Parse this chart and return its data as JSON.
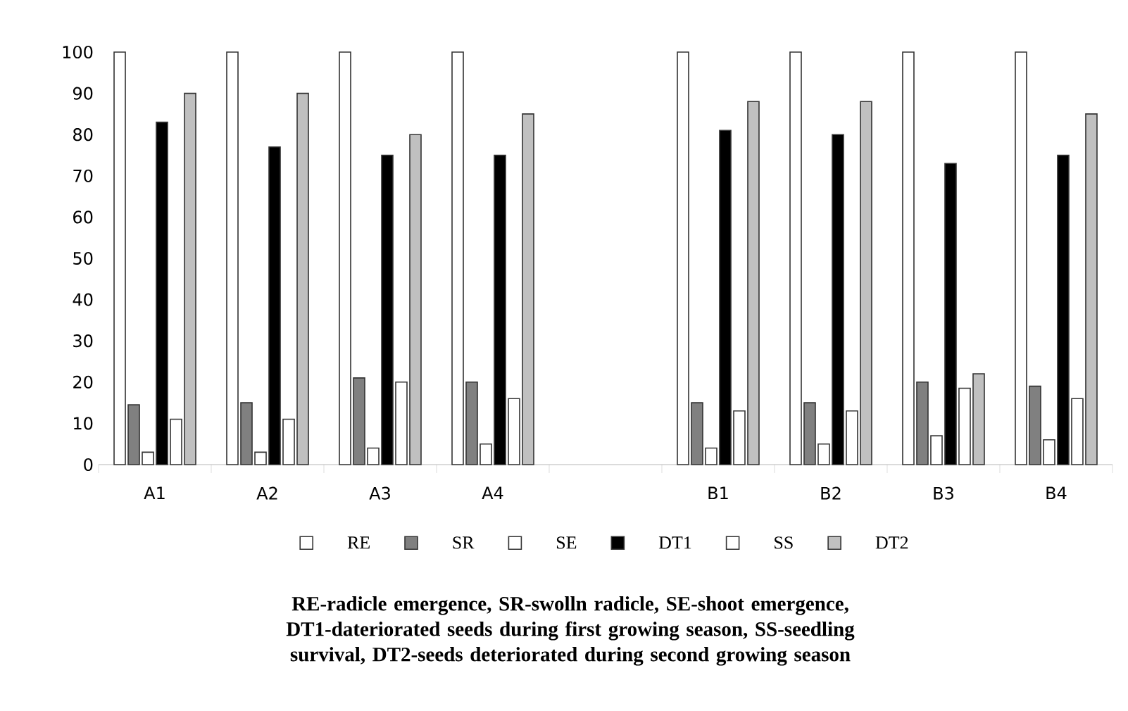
{
  "chart_data": {
    "type": "bar",
    "categories": [
      "A1",
      "A2",
      "A3",
      "A4",
      null,
      "B1",
      "B2",
      "B3",
      "B4"
    ],
    "series": [
      {
        "name": "RE",
        "color": "#ffffff",
        "values": [
          100,
          100,
          100,
          100,
          null,
          100,
          100,
          100,
          100
        ]
      },
      {
        "name": "SR",
        "color": "#808080",
        "values": [
          14.5,
          15,
          21,
          20,
          null,
          15,
          15,
          20,
          19
        ]
      },
      {
        "name": "SE",
        "color": "#ffffff",
        "values": [
          3,
          3,
          4,
          5,
          null,
          4,
          5,
          7,
          6
        ]
      },
      {
        "name": "DT1",
        "color": "#000000",
        "values": [
          83,
          77,
          75,
          75,
          null,
          81,
          80,
          73,
          75
        ]
      },
      {
        "name": "SS",
        "color": "#ffffff",
        "values": [
          11,
          11,
          20,
          16,
          null,
          13,
          13,
          18.5,
          16
        ]
      },
      {
        "name": "DT2",
        "color": "#c0c0c0",
        "values": [
          90,
          90,
          80,
          85,
          null,
          88,
          88,
          22,
          85
        ]
      }
    ],
    "ylim": [
      0,
      100
    ],
    "yticks": [
      0,
      10,
      20,
      30,
      40,
      50,
      60,
      70,
      80,
      90,
      100
    ],
    "legend": "bottom",
    "grid": false,
    "annotations": [
      "RE-radicle emergence, SR-swolln radicle, SE-shoot emergence, DT1-dateriorated seeds during first growing season, SS-seedling survival, DT2-seeds deteriorated during second growing season"
    ]
  }
}
